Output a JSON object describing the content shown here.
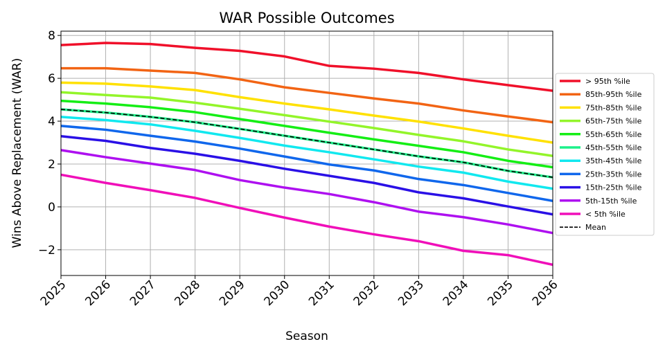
{
  "chart_data": {
    "type": "line",
    "title": "WAR Possible Outcomes",
    "xlabel": "Season",
    "ylabel": "Wins Above Replacement (WAR)",
    "xlim": [
      2025,
      2036
    ],
    "ylim": [
      -3.2,
      8.2
    ],
    "x": [
      2025,
      2026,
      2027,
      2028,
      2029,
      2030,
      2031,
      2032,
      2033,
      2034,
      2035,
      2036
    ],
    "x_ticks": [
      "2025",
      "2026",
      "2027",
      "2028",
      "2029",
      "2030",
      "2031",
      "2032",
      "2033",
      "2034",
      "2035",
      "2036"
    ],
    "y_ticks": [
      -2,
      0,
      2,
      4,
      6,
      8
    ],
    "y_tick_labels": [
      "−2",
      "0",
      "2",
      "4",
      "6",
      "8"
    ],
    "grid": true,
    "legend_position": "outside-right",
    "series": [
      {
        "name": "> 95th %ile",
        "color": "#f0102a",
        "style": "solid",
        "values": [
          7.55,
          7.65,
          7.6,
          7.42,
          7.28,
          7.02,
          6.58,
          6.45,
          6.25,
          5.95,
          5.68,
          5.42
        ]
      },
      {
        "name": "85th-95th %ile",
        "color": "#f26414",
        "style": "solid",
        "values": [
          6.47,
          6.47,
          6.36,
          6.25,
          5.95,
          5.58,
          5.32,
          5.06,
          4.82,
          4.5,
          4.22,
          3.95
        ]
      },
      {
        "name": "75th-85th %ile",
        "color": "#ffe100",
        "style": "solid",
        "values": [
          5.8,
          5.75,
          5.62,
          5.45,
          5.12,
          4.82,
          4.55,
          4.26,
          3.98,
          3.66,
          3.32,
          3.0
        ]
      },
      {
        "name": "65th-75th %ile",
        "color": "#93f52a",
        "style": "solid",
        "values": [
          5.35,
          5.22,
          5.1,
          4.86,
          4.58,
          4.28,
          3.98,
          3.68,
          3.36,
          3.06,
          2.68,
          2.38
        ]
      },
      {
        "name": "55th-65th %ile",
        "color": "#15ee15",
        "style": "solid",
        "values": [
          4.95,
          4.82,
          4.65,
          4.42,
          4.1,
          3.78,
          3.46,
          3.15,
          2.85,
          2.55,
          2.15,
          1.85
        ]
      },
      {
        "name": "45th-55th %ile",
        "color": "#1cf18a",
        "style": "solid",
        "values": [
          4.55,
          4.4,
          4.2,
          3.95,
          3.64,
          3.32,
          3.0,
          2.68,
          2.36,
          2.08,
          1.68,
          1.38
        ]
      },
      {
        "name": "35th-45th %ile",
        "color": "#11e8ef",
        "style": "solid",
        "values": [
          4.2,
          4.05,
          3.85,
          3.55,
          3.22,
          2.86,
          2.55,
          2.22,
          1.88,
          1.6,
          1.18,
          0.85
        ]
      },
      {
        "name": "25th-35th %ile",
        "color": "#1067ec",
        "style": "solid",
        "values": [
          3.78,
          3.6,
          3.32,
          3.05,
          2.72,
          2.35,
          1.98,
          1.7,
          1.3,
          1.02,
          0.65,
          0.28
        ]
      },
      {
        "name": "15th-25th %ile",
        "color": "#2a10e6",
        "style": "solid",
        "values": [
          3.3,
          3.08,
          2.75,
          2.48,
          2.15,
          1.78,
          1.45,
          1.12,
          0.68,
          0.4,
          0.02,
          -0.35
        ]
      },
      {
        "name": "5th-15th %ile",
        "color": "#ae10f0",
        "style": "solid",
        "values": [
          2.65,
          2.32,
          2.02,
          1.72,
          1.25,
          0.9,
          0.6,
          0.22,
          -0.22,
          -0.48,
          -0.82,
          -1.22
        ]
      },
      {
        "name": "< 5th %ile",
        "color": "#f00fb9",
        "style": "solid",
        "values": [
          1.5,
          1.12,
          0.78,
          0.42,
          -0.05,
          -0.5,
          -0.92,
          -1.28,
          -1.6,
          -2.05,
          -2.25,
          -2.7
        ]
      },
      {
        "name": "Mean",
        "color": "#000000",
        "style": "dashed",
        "values": [
          4.55,
          4.4,
          4.2,
          3.95,
          3.64,
          3.32,
          3.0,
          2.68,
          2.36,
          2.08,
          1.68,
          1.38
        ]
      }
    ]
  }
}
